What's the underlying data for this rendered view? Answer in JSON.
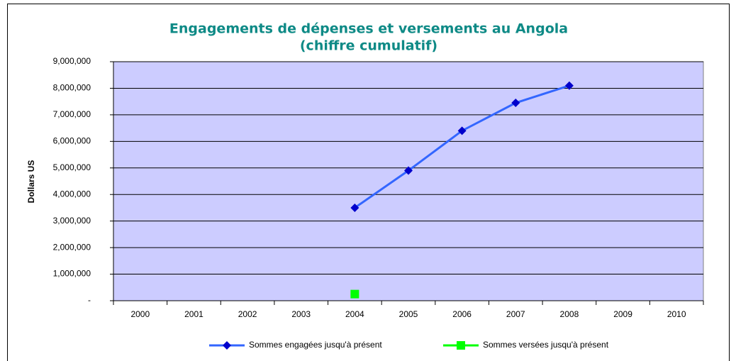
{
  "chart_data": {
    "type": "line",
    "title": [
      "Engagements de dépenses et versements au Angola",
      "(chiffre cumulatif)"
    ],
    "y_label": "Dollars US",
    "categories": [
      "2000",
      "2001",
      "2002",
      "2003",
      "2004",
      "2005",
      "2006",
      "2007",
      "2008",
      "2009",
      "2010"
    ],
    "series": [
      {
        "name": "Sommes engagées jusqu'à présent",
        "color": "#3366FF",
        "marker_color": "#0000CC",
        "marker": "diamond",
        "line": true,
        "values": [
          null,
          null,
          null,
          null,
          3500000,
          4900000,
          6400000,
          7450000,
          8100000,
          null,
          null
        ]
      },
      {
        "name": "Sommes versées jusqu'à présent",
        "color": "#00FF00",
        "marker_color": "#00FF00",
        "marker": "square",
        "line": true,
        "values": [
          null,
          null,
          null,
          null,
          250000,
          null,
          null,
          null,
          null,
          null,
          null
        ]
      }
    ],
    "ylim": [
      0,
      9000000
    ],
    "yticks": [
      {
        "value": 0,
        "label": "-"
      },
      {
        "value": 1000000,
        "label": "1,000,000"
      },
      {
        "value": 2000000,
        "label": "2,000,000"
      },
      {
        "value": 3000000,
        "label": "3,000,000"
      },
      {
        "value": 4000000,
        "label": "4,000,000"
      },
      {
        "value": 5000000,
        "label": "5,000,000"
      },
      {
        "value": 6000000,
        "label": "6,000,000"
      },
      {
        "value": 7000000,
        "label": "7,000,000"
      },
      {
        "value": 8000000,
        "label": "8,000,000"
      },
      {
        "value": 9000000,
        "label": "9,000,000"
      }
    ],
    "grid": true,
    "plot_background": "#CCCCFF",
    "legend": "bottom"
  }
}
